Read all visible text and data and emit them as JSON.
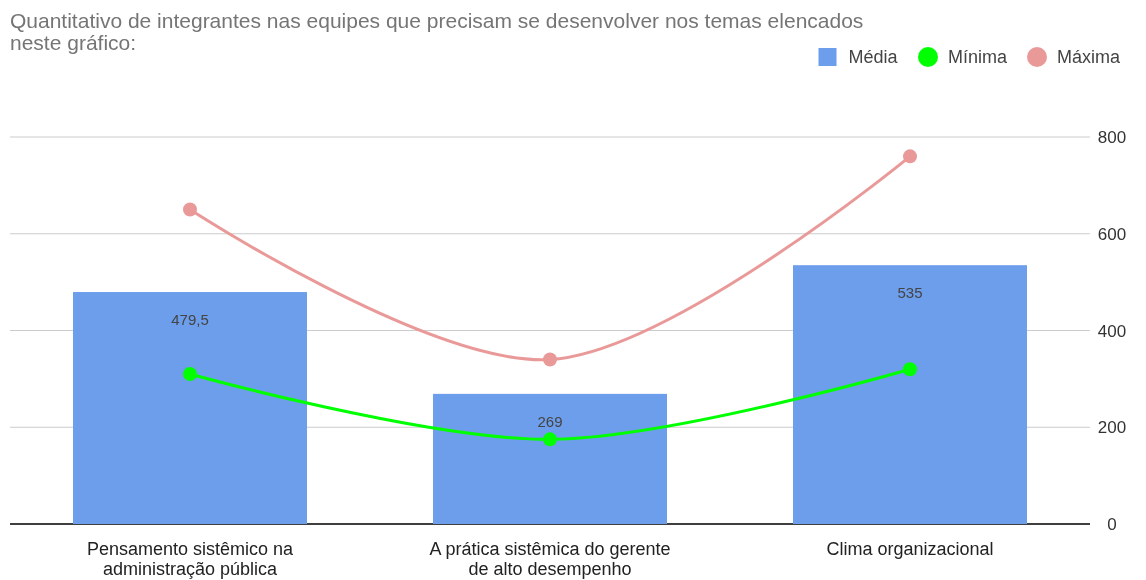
{
  "chart_data": {
    "type": "bar",
    "title": "Quantitativo de integrantes nas equipes que precisam se desenvolver nos temas elencados neste gráfico:",
    "categories": [
      "Pensamento sistêmico na administração pública",
      "A prática sistêmica do gerente de alto desempenho",
      "Clima organizacional"
    ],
    "series": [
      {
        "name": "Média",
        "color": "#6d9eeb",
        "values": [
          479.5,
          269,
          535
        ],
        "value_labels": [
          "479,5",
          "269",
          "535"
        ]
      },
      {
        "name": "Mínima",
        "type": "line",
        "color": "#00ff00",
        "values": [
          310,
          175,
          320
        ]
      },
      {
        "name": "Máxima",
        "type": "line",
        "color": "#ea9999",
        "values": [
          650,
          340,
          760
        ]
      }
    ],
    "ylim": [
      0,
      800
    ],
    "yticks": [
      0,
      200,
      400,
      600,
      800
    ],
    "grid": "y",
    "legend": "top right",
    "marker": "circle"
  }
}
